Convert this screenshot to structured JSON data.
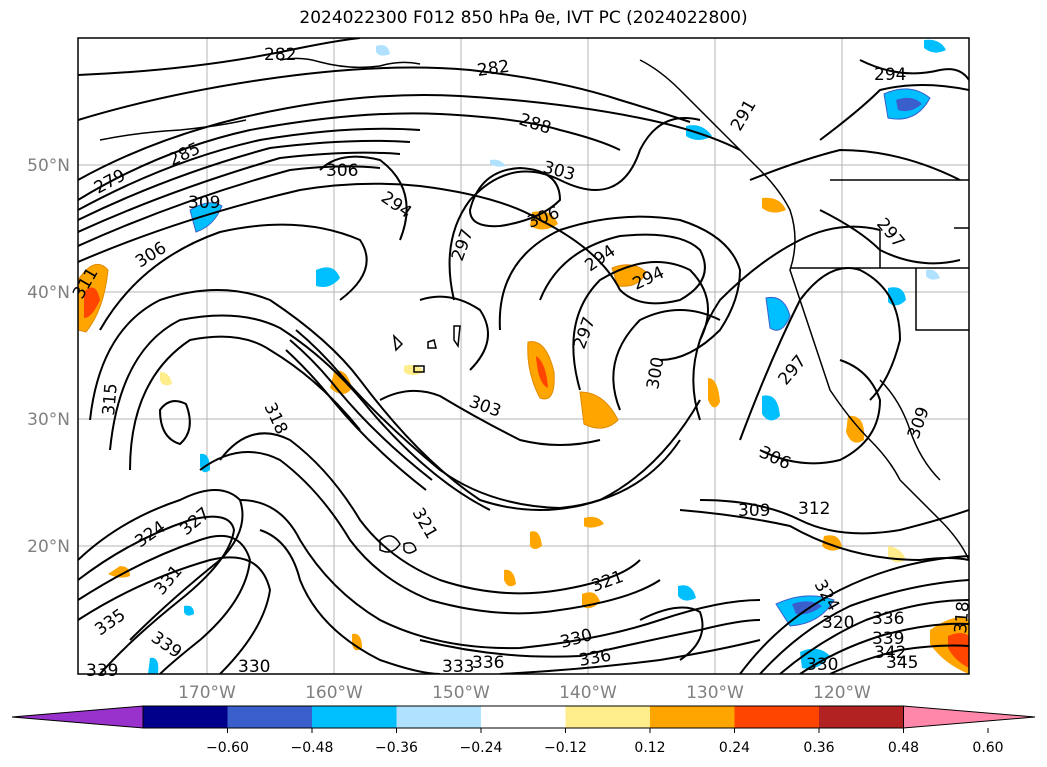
{
  "title": "2024022300 F012 850 hPa θe, IVT PC (2024022800)",
  "map": {
    "lon_labels": [
      "170°W",
      "160°W",
      "150°W",
      "140°W",
      "130°W",
      "120°W"
    ],
    "lat_labels": [
      "50°N",
      "40°N",
      "30°N",
      "20°N"
    ],
    "grid": true,
    "contour_labels": [
      "282",
      "282",
      "288",
      "285",
      "279",
      "306",
      "303",
      "294",
      "309",
      "306",
      "306",
      "297",
      "294",
      "294",
      "291",
      "294",
      "297",
      "311",
      "315",
      "297",
      "300",
      "297",
      "318",
      "303",
      "306",
      "309",
      "312",
      "309",
      "324",
      "327",
      "321",
      "321",
      "331",
      "339",
      "335",
      "339",
      "330",
      "330",
      "336",
      "336",
      "333",
      "324",
      "320",
      "336",
      "339",
      "342",
      "345",
      "318",
      "330"
    ]
  },
  "colorbar": {
    "ticks": [
      "−0.60",
      "−0.48",
      "−0.36",
      "−0.24",
      "−0.12",
      "0.12",
      "0.24",
      "0.36",
      "0.48",
      "0.60"
    ],
    "colors": [
      "#9932cc",
      "#00008b",
      "#3a5fcd",
      "#00bfff",
      "#b0e2ff",
      "#ffffff",
      "#ffec8b",
      "#ffa500",
      "#ff4500",
      "#b22222",
      "#ff88aa"
    ],
    "extend": "both"
  }
}
